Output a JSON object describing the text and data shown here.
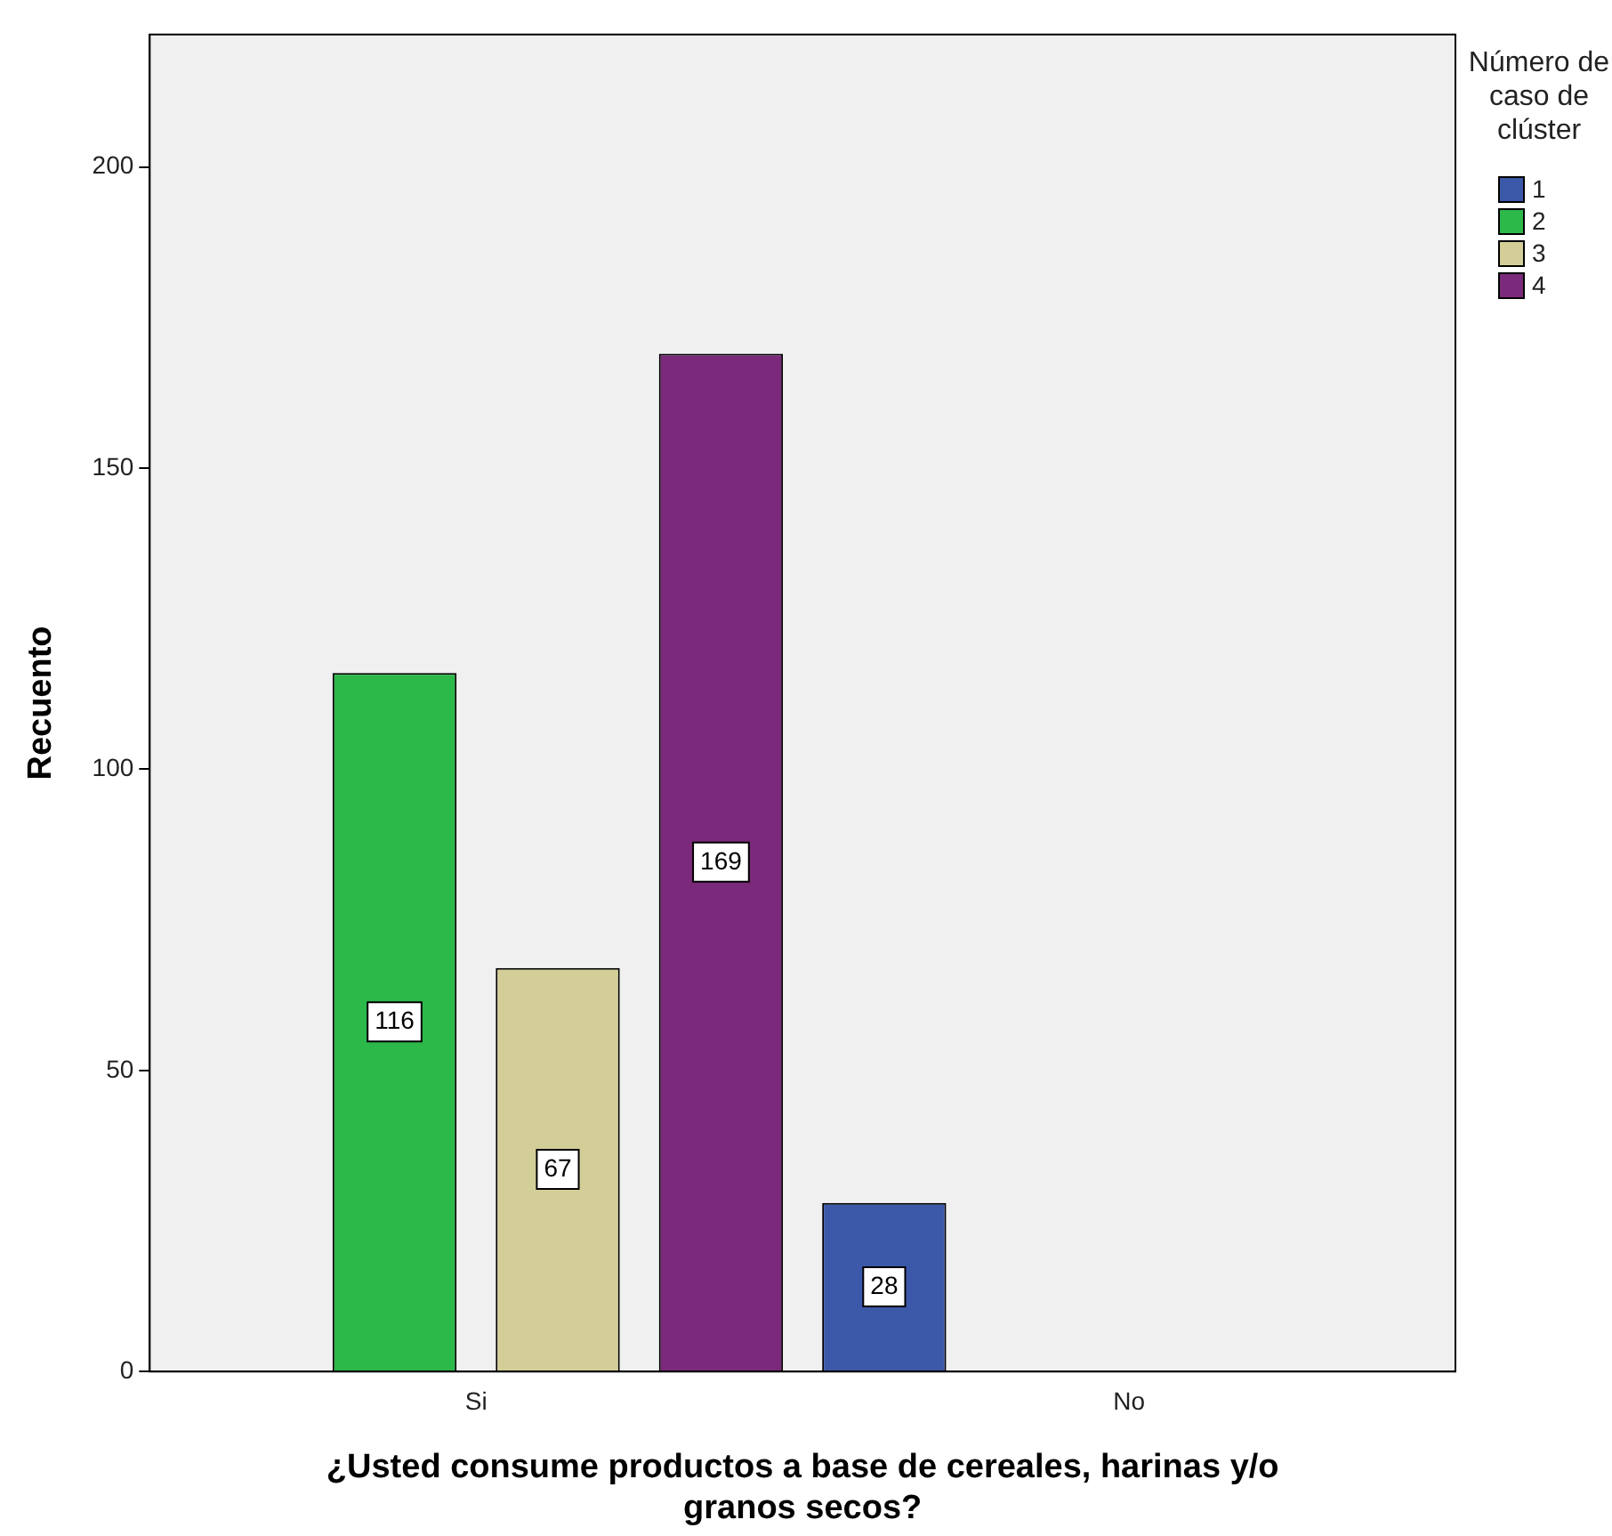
{
  "chart_data": {
    "type": "bar",
    "xlabel": "¿Usted consume productos a base de cereales, harinas y/o granos secos?",
    "ylabel": "Recuento",
    "legend_title": "Número de caso de clúster",
    "categories": [
      "Si",
      "No"
    ],
    "series": [
      {
        "name": "1",
        "color": "#3c58a8",
        "values": [
          null,
          28
        ]
      },
      {
        "name": "2",
        "color": "#2db84a",
        "values": [
          116,
          null
        ]
      },
      {
        "name": "3",
        "color": "#d3ce97",
        "values": [
          67,
          null
        ]
      },
      {
        "name": "4",
        "color": "#7b2a7b",
        "values": [
          169,
          null
        ]
      }
    ],
    "ylim": [
      0,
      222
    ],
    "yticks": [
      0,
      50,
      100,
      150,
      200
    ],
    "grid": false,
    "legend": "right",
    "data_labels": true
  }
}
